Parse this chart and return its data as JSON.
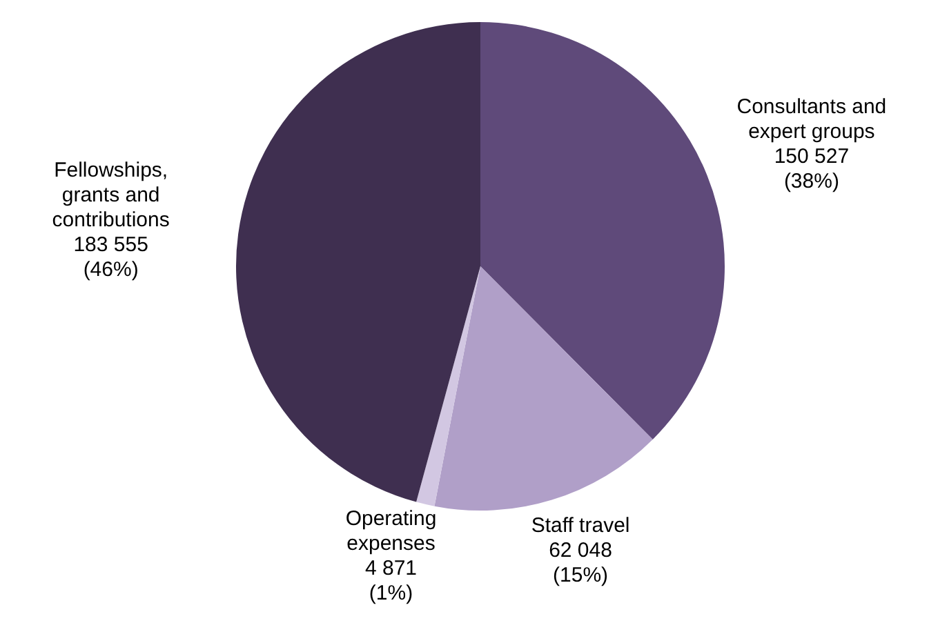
{
  "chart_data": {
    "type": "pie",
    "categories": [
      "Consultants and expert groups",
      "Staff travel",
      "Operating expenses",
      "Fellowships, grants and contributions"
    ],
    "values": [
      150527,
      62048,
      4871,
      183555
    ],
    "colors": [
      "#5f4a7a",
      "#b09fc8",
      "#d2c7e2",
      "#3f2f50"
    ],
    "value_labels": [
      "150 527\n(38%)",
      "62 048\n(15%)",
      "4 871\n(1%)",
      "183 555\n(46%)"
    ],
    "legend": false
  }
}
